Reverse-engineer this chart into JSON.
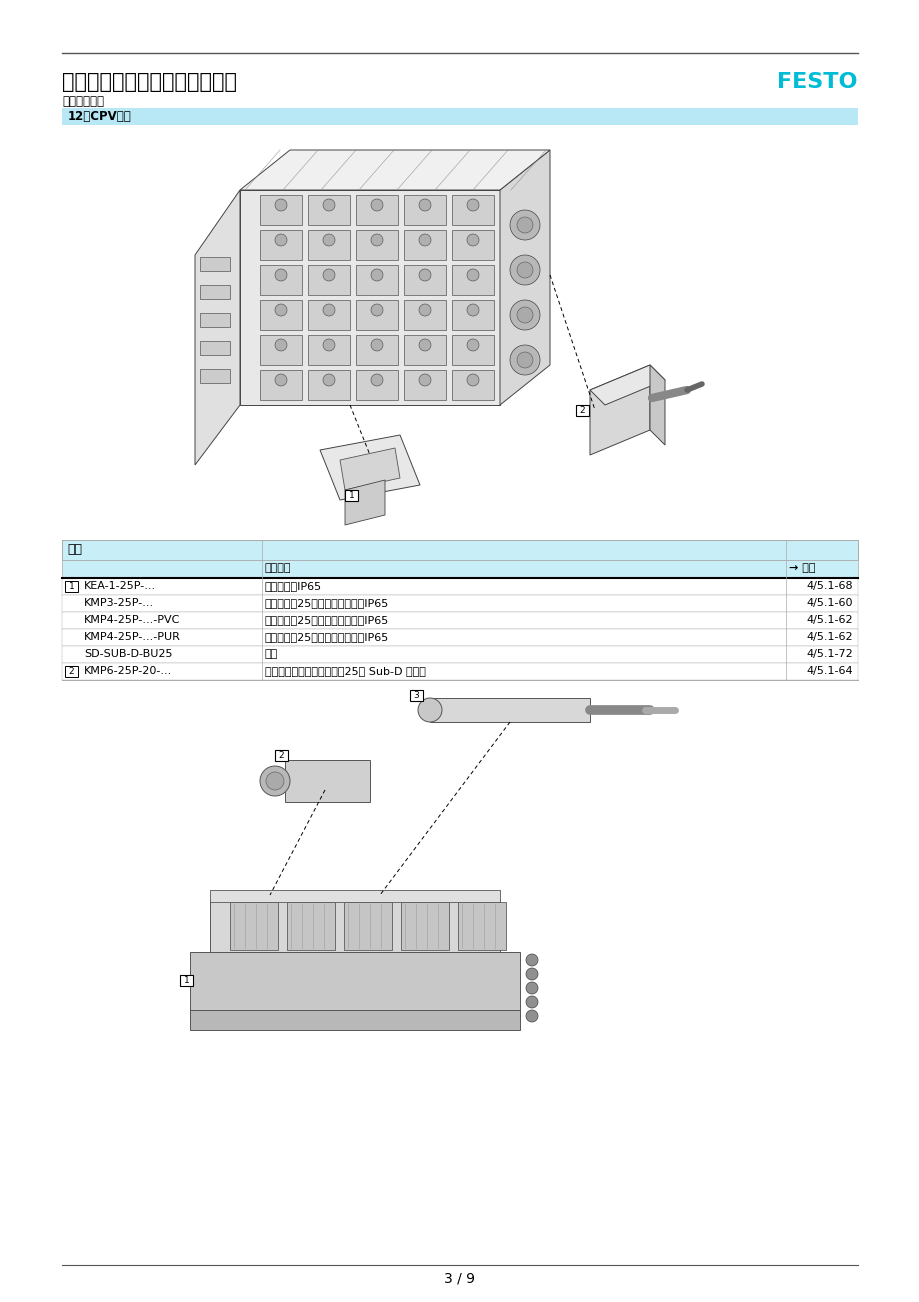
{
  "title": "电连接技术，多针插头连接方式",
  "subtitle": "外围元件一览",
  "brand": "FESTO",
  "section_label": "12型CPV阀岛",
  "section_bg": "#b8e8f5",
  "table_header_bg": "#c8eef8",
  "table_border": "#aaaaaa",
  "table_title": "附件",
  "table_header_desc": "简要说明",
  "table_header_page": "→ 页码",
  "table_rows": [
    {
      "group": "1",
      "item": "KEA-1-25P-...",
      "desc": "连接电缆，IP65",
      "page": "4/5.1-68"
    },
    {
      "group": "",
      "item": "KMP3-25P-...",
      "desc": "连接电缆，25针，适用于拖链，IP65",
      "page": "4/5.1-60"
    },
    {
      "group": "",
      "item": "KMP4-25P-...-PVC",
      "desc": "连接电缆，25针，适用于拖链，IP65",
      "page": "4/5.1-62"
    },
    {
      "group": "",
      "item": "KMP4-25P-...-PUR",
      "desc": "连接电缆，25针，适用于拖链，IP65",
      "page": "4/5.1-62"
    },
    {
      "group": "",
      "item": "SD-SUB-D-BU25",
      "desc": "插座",
      "page": "4/5.1-72"
    },
    {
      "group": "2",
      "item": "KMP6-25P-20-...",
      "desc": "连接电缆，适用于拖链，帤25针 Sub-D 型插头",
      "page": "4/5.1-64"
    }
  ],
  "page_number": "3 / 9",
  "line_color": "#555555",
  "brand_color": "#00bcd4",
  "title_fontsize": 15,
  "subtitle_fontsize": 8.5,
  "section_fontsize": 8.5,
  "table_fontsize": 8,
  "white": "#ffffff",
  "black": "#000000"
}
